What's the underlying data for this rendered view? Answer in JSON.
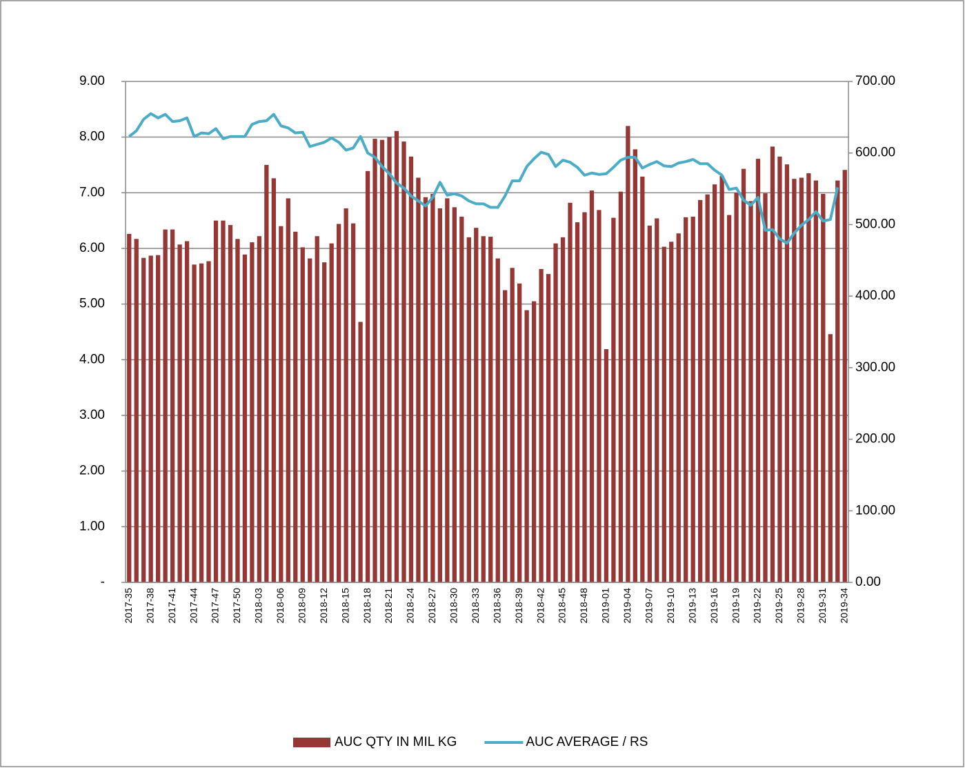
{
  "chart_data": {
    "type": "bar-line",
    "categories": [
      "2017-35",
      null,
      null,
      "2017-38",
      null,
      null,
      "2017-41",
      null,
      null,
      "2017-44",
      null,
      null,
      "2017-47",
      null,
      null,
      "2017-50",
      null,
      null,
      "2018-03",
      null,
      null,
      "2018-06",
      null,
      null,
      "2018-09",
      null,
      null,
      "2018-12",
      null,
      null,
      "2018-15",
      null,
      null,
      "2018-18",
      null,
      null,
      "2018-21",
      null,
      null,
      "2018-24",
      null,
      null,
      "2018-27",
      null,
      null,
      "2018-30",
      null,
      null,
      "2018-33",
      null,
      null,
      "2018-36",
      null,
      null,
      "2018-39",
      null,
      null,
      "2018-42",
      null,
      null,
      "2018-45",
      null,
      null,
      "2018-48",
      null,
      null,
      "2019-01",
      null,
      null,
      "2019-04",
      null,
      null,
      "2019-07",
      null,
      null,
      "2019-10",
      null,
      null,
      "2019-13",
      null,
      null,
      "2019-16",
      null,
      null,
      "2019-19",
      null,
      null,
      "2019-22",
      null,
      null,
      "2019-25",
      null,
      null,
      "2019-28",
      null,
      null,
      "2019-31",
      null,
      null,
      "2019-34"
    ],
    "series": [
      {
        "name": "AUC QTY IN MIL KG",
        "type": "bar",
        "color": "#953735",
        "axis": "y",
        "values": [
          6.26,
          6.17,
          5.83,
          5.87,
          5.88,
          6.34,
          6.34,
          6.07,
          6.13,
          5.71,
          5.73,
          5.77,
          6.5,
          6.5,
          6.42,
          6.17,
          5.89,
          6.11,
          6.22,
          7.5,
          7.26,
          6.4,
          6.9,
          6.3,
          6.02,
          5.82,
          6.22,
          5.75,
          6.09,
          6.44,
          6.72,
          6.45,
          4.68,
          7.39,
          7.97,
          7.95,
          8.0,
          8.11,
          7.92,
          7.65,
          7.27,
          6.92,
          6.98,
          6.72,
          6.9,
          6.74,
          6.57,
          6.2,
          6.37,
          6.22,
          6.21,
          5.82,
          5.25,
          5.65,
          5.37,
          4.89,
          5.05,
          5.63,
          5.54,
          6.09,
          6.2,
          6.82,
          6.47,
          6.65,
          7.04,
          6.69,
          4.19,
          6.55,
          7.02,
          8.2,
          7.78,
          7.29,
          6.41,
          6.54,
          6.03,
          6.12,
          6.27,
          6.56,
          6.57,
          6.87,
          6.97,
          7.15,
          7.3,
          6.6,
          7.0,
          7.43,
          6.85,
          7.61,
          6.99,
          7.83,
          7.65,
          7.51,
          7.25,
          7.27,
          7.35,
          7.22,
          6.98,
          4.46,
          7.22,
          7.41
        ]
      },
      {
        "name": "AUC AVERAGE / RS",
        "type": "line",
        "color": "#4bacc6",
        "axis": "y2",
        "values": [
          623,
          631,
          647,
          655,
          649,
          654,
          644,
          645,
          649,
          623,
          628,
          627,
          634,
          620,
          623,
          623,
          623,
          640,
          644,
          645,
          654,
          638,
          635,
          628,
          629,
          609,
          612,
          615,
          621,
          615,
          604,
          607,
          623,
          600,
          594,
          581,
          571,
          558,
          551,
          540,
          533,
          526,
          538,
          559,
          541,
          543,
          540,
          533,
          529,
          529,
          524,
          524,
          540,
          561,
          561,
          581,
          592,
          601,
          598,
          581,
          590,
          587,
          580,
          569,
          572,
          570,
          571,
          580,
          590,
          594,
          594,
          579,
          584,
          588,
          582,
          581,
          586,
          588,
          591,
          585,
          585,
          576,
          569,
          549,
          551,
          534,
          527,
          538,
          492,
          493,
          480,
          474,
          488,
          499,
          507,
          518,
          505,
          507,
          552,
          null
        ]
      }
    ],
    "ylim": [
      0,
      9
    ],
    "yticks": [
      {
        "value": 0,
        "label": "-"
      },
      {
        "value": 1,
        "label": "1.00"
      },
      {
        "value": 2,
        "label": "2.00"
      },
      {
        "value": 3,
        "label": "3.00"
      },
      {
        "value": 4,
        "label": "4.00"
      },
      {
        "value": 5,
        "label": "5.00"
      },
      {
        "value": 6,
        "label": "6.00"
      },
      {
        "value": 7,
        "label": "7.00"
      },
      {
        "value": 8,
        "label": "8.00"
      },
      {
        "value": 9,
        "label": "9.00"
      }
    ],
    "y2lim": [
      0,
      700
    ],
    "y2ticks": [
      {
        "value": 0,
        "label": "0.00"
      },
      {
        "value": 100,
        "label": "100.00"
      },
      {
        "value": 200,
        "label": "200.00"
      },
      {
        "value": 300,
        "label": "300.00"
      },
      {
        "value": 400,
        "label": "400.00"
      },
      {
        "value": 500,
        "label": "500.00"
      },
      {
        "value": 600,
        "label": "600.00"
      },
      {
        "value": 700,
        "label": "700.00"
      }
    ],
    "grid": true,
    "legend": "bottom"
  }
}
